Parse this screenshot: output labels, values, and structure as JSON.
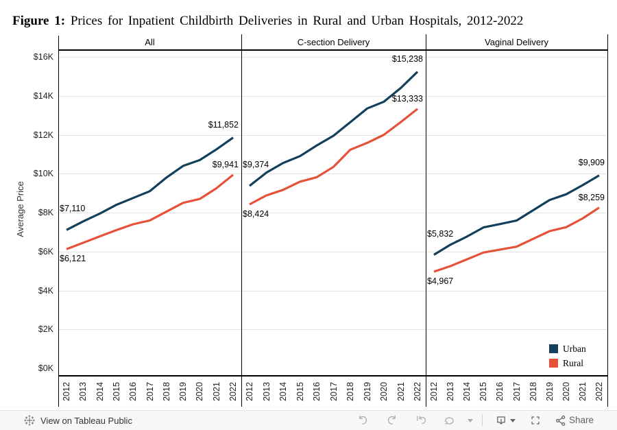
{
  "title": {
    "prefix": "Figure 1:",
    "rest": "Prices for Inpatient Childbirth Deliveries in Rural and Urban Hospitals, 2012-2022"
  },
  "chart_data": {
    "type": "line",
    "ylabel": "Average Price",
    "ylim": [
      0,
      16000
    ],
    "y_tick_labels": [
      "$0K",
      "$2K",
      "$4K",
      "$6K",
      "$8K",
      "$10K",
      "$12K",
      "$14K",
      "$16K"
    ],
    "x_tick_labels": [
      "2012",
      "2013",
      "2014",
      "2015",
      "2016",
      "2017",
      "2018",
      "2019",
      "2020",
      "2021",
      "2022"
    ],
    "grid": true,
    "legend": {
      "position": "bottom-right",
      "entries": [
        {
          "label": "Urban",
          "color": "#123f5c"
        },
        {
          "label": "Rural",
          "color": "#e65139"
        }
      ]
    },
    "panels": [
      {
        "label": "All",
        "series": [
          {
            "name": "Urban",
            "color": "#123f5c",
            "values": [
              7110,
              7550,
              7950,
              8400,
              8750,
              9100,
              9800,
              10400,
              10700,
              11250,
              11852
            ]
          },
          {
            "name": "Rural",
            "color": "#e65139",
            "values": [
              6121,
              6450,
              6780,
              7100,
              7400,
              7600,
              8050,
              8500,
              8700,
              9250,
              9941
            ]
          }
        ],
        "labels": {
          "urban_start": "$7,110",
          "rural_start": "$6,121",
          "urban_end": "$11,852",
          "rural_end": "$9,941"
        }
      },
      {
        "label": "C-section Delivery",
        "series": [
          {
            "name": "Urban",
            "color": "#123f5c",
            "values": [
              9374,
              10050,
              10550,
              10900,
              11450,
              11950,
              12650,
              13350,
              13700,
              14400,
              15238
            ]
          },
          {
            "name": "Rural",
            "color": "#e65139",
            "values": [
              8424,
              8880,
              9170,
              9590,
              9820,
              10350,
              11230,
              11580,
              12000,
              12650,
              13333
            ]
          }
        ],
        "labels": {
          "urban_start": "$9,374",
          "rural_start": "$8,424",
          "urban_end": "$15,238",
          "rural_end": "$13,333"
        }
      },
      {
        "label": "Vaginal Delivery",
        "series": [
          {
            "name": "Urban",
            "color": "#123f5c",
            "values": [
              5832,
              6350,
              6770,
              7240,
              7410,
              7590,
              8120,
              8650,
              8940,
              9410,
              9909
            ]
          },
          {
            "name": "Rural",
            "color": "#e65139",
            "values": [
              4967,
              5250,
              5600,
              5950,
              6100,
              6250,
              6650,
              7050,
              7250,
              7700,
              8259
            ]
          }
        ],
        "labels": {
          "urban_start": "$5,832",
          "rural_start": "$4,967",
          "urban_end": "$9,909",
          "rural_end": "$8,259"
        }
      }
    ]
  },
  "toolbar": {
    "view_link": "View on Tableau Public",
    "share_label": "Share"
  }
}
